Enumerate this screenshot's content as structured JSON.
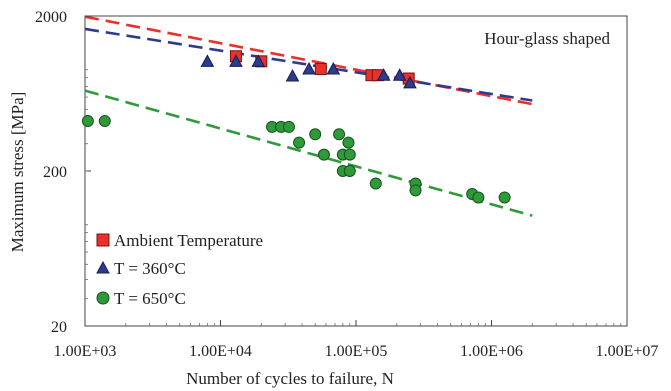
{
  "chart_data": {
    "type": "scatter",
    "x_scale": "log",
    "y_scale": "log",
    "xlim": [
      1000,
      10000000
    ],
    "ylim": [
      20,
      2000
    ],
    "xlabel": "Number of cycles to failure, N",
    "ylabel": "Maximum stress [MPa]",
    "x_ticks": [
      {
        "value": 1000,
        "label": "1.00E+03"
      },
      {
        "value": 10000,
        "label": "1.00E+04"
      },
      {
        "value": 100000,
        "label": "1.00E+05"
      },
      {
        "value": 1000000,
        "label": "1.00E+06"
      },
      {
        "value": 10000000,
        "label": "1.00E+07"
      }
    ],
    "y_ticks": [
      {
        "value": 20,
        "label": "20"
      },
      {
        "value": 200,
        "label": "200"
      },
      {
        "value": 2000,
        "label": "2000"
      }
    ],
    "annotation": "Hour-glass shaped",
    "legend_position": "bottom-left",
    "series": [
      {
        "name": "Ambient Temperature",
        "marker": "square",
        "color": "#e8312a",
        "points": [
          [
            13000,
            1100
          ],
          [
            20000,
            1020
          ],
          [
            55000,
            910
          ],
          [
            130000,
            830
          ],
          [
            145000,
            830
          ],
          [
            245000,
            790
          ]
        ]
      },
      {
        "name": "T = 360°C",
        "marker": "triangle",
        "color": "#2e3a8c",
        "points": [
          [
            8000,
            1020
          ],
          [
            13000,
            1020
          ],
          [
            19000,
            1020
          ],
          [
            34000,
            820
          ],
          [
            45000,
            910
          ],
          [
            68000,
            910
          ],
          [
            160000,
            830
          ],
          [
            210000,
            830
          ],
          [
            250000,
            740
          ]
        ]
      },
      {
        "name": "T = 650°C",
        "marker": "circle",
        "color": "#2e9a3a",
        "points": [
          [
            1050,
            420
          ],
          [
            1400,
            420
          ],
          [
            24000,
            385
          ],
          [
            28000,
            385
          ],
          [
            32000,
            385
          ],
          [
            38000,
            305
          ],
          [
            50000,
            345
          ],
          [
            58000,
            255
          ],
          [
            75000,
            345
          ],
          [
            80000,
            255
          ],
          [
            88000,
            305
          ],
          [
            90000,
            255
          ],
          [
            80000,
            200
          ],
          [
            90000,
            200
          ],
          [
            140000,
            166
          ],
          [
            275000,
            166
          ],
          [
            275000,
            150
          ],
          [
            720000,
            142
          ],
          [
            800000,
            135
          ],
          [
            1250000,
            135
          ]
        ]
      }
    ],
    "trend_lines": [
      {
        "series": "Ambient Temperature",
        "color": "#e8312a",
        "from": [
          1000,
          1980
        ],
        "to": [
          2000000,
          540
        ]
      },
      {
        "series": "T = 360°C",
        "color": "#2e3a8c",
        "from": [
          1000,
          1650
        ],
        "to": [
          2000000,
          570
        ]
      },
      {
        "series": "T = 650°C",
        "color": "#2e9a3a",
        "from": [
          1000,
          660
        ],
        "to": [
          2000000,
          103
        ]
      }
    ]
  }
}
